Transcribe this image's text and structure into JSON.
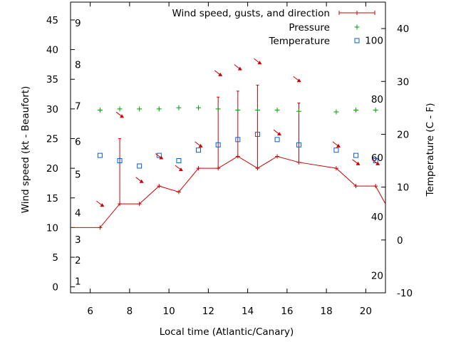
{
  "chart_data": {
    "type": "line",
    "xlabel": "Local time (Atlantic/Canary)",
    "ylabel_left": "Wind speed (kt - Beaufort)",
    "ylabel_right": "Temperature (C - F)",
    "xlim": [
      5,
      21
    ],
    "ylim_left": [
      -1,
      48
    ],
    "ylim_right": [
      -10,
      45
    ],
    "x_ticks": [
      6,
      8,
      10,
      12,
      14,
      16,
      18,
      20
    ],
    "y_left_ticks": [
      0,
      5,
      10,
      15,
      20,
      25,
      30,
      35,
      40,
      45
    ],
    "y_right_ticks": [
      -10,
      0,
      10,
      20,
      30,
      40
    ],
    "beaufort_labels": [
      {
        "label": "1",
        "kt": 1
      },
      {
        "label": "2",
        "kt": 4.5
      },
      {
        "label": "3",
        "kt": 8
      },
      {
        "label": "4",
        "kt": 12.5
      },
      {
        "label": "5",
        "kt": 19
      },
      {
        "label": "6",
        "kt": 24.5
      },
      {
        "label": "7",
        "kt": 30.5
      },
      {
        "label": "8",
        "kt": 37.5
      },
      {
        "label": "9",
        "kt": 44.5
      }
    ],
    "fahrenheit_labels": [
      {
        "label": "20",
        "c": -6.7
      },
      {
        "label": "40",
        "c": 4.4
      },
      {
        "label": "60",
        "c": 15.6
      },
      {
        "label": "80",
        "c": 26.7
      },
      {
        "label": "100",
        "c": 37.8
      }
    ],
    "legend": [
      {
        "label": "Wind speed, gusts, and direction",
        "marker": "line-plus"
      },
      {
        "label": "Pressure",
        "marker": "plus"
      },
      {
        "label": "Temperature",
        "marker": "square"
      }
    ],
    "colors": {
      "wind": "#d00000",
      "pressure": "#00a000",
      "temperature": "#0060d0"
    },
    "wind": {
      "x": [
        5.0,
        6.5,
        7.5,
        8.5,
        9.5,
        10.5,
        11.5,
        12.5,
        13.5,
        14.5,
        15.5,
        16.6,
        18.5,
        19.5,
        20.5,
        21.0
      ],
      "speed": [
        10,
        10,
        14,
        14,
        17,
        16,
        20,
        20,
        22,
        20,
        22,
        21,
        20,
        17,
        17,
        14
      ],
      "gust": [
        null,
        null,
        25,
        null,
        null,
        null,
        null,
        32,
        33,
        34,
        null,
        31,
        null,
        null,
        null,
        null
      ],
      "arrows": [
        {
          "x": 6.5,
          "kt": 14
        },
        {
          "x": 7.5,
          "kt": 29
        },
        {
          "x": 8.5,
          "kt": 18
        },
        {
          "x": 9.5,
          "kt": 22
        },
        {
          "x": 10.5,
          "kt": 20
        },
        {
          "x": 11.5,
          "kt": 24
        },
        {
          "x": 12.5,
          "kt": 36
        },
        {
          "x": 13.5,
          "kt": 37
        },
        {
          "x": 14.5,
          "kt": 38
        },
        {
          "x": 15.5,
          "kt": 26
        },
        {
          "x": 16.5,
          "kt": 35
        },
        {
          "x": 18.5,
          "kt": 24
        },
        {
          "x": 19.5,
          "kt": 21
        },
        {
          "x": 20.5,
          "kt": 21
        }
      ]
    },
    "pressure": {
      "x": [
        6.5,
        7.5,
        8.5,
        9.5,
        10.5,
        11.5,
        12.5,
        13.5,
        14.5,
        15.5,
        16.6,
        18.5,
        19.5,
        20.5
      ],
      "kt": [
        29.8,
        30.0,
        30.0,
        30.0,
        30.2,
        30.2,
        30.0,
        29.8,
        29.8,
        29.8,
        29.6,
        29.5,
        29.8,
        29.8
      ]
    },
    "temperature": {
      "x": [
        6.5,
        7.5,
        8.5,
        9.5,
        10.5,
        11.5,
        12.5,
        13.5,
        14.5,
        15.5,
        16.6,
        18.5,
        19.5,
        20.5
      ],
      "c": [
        16,
        15,
        14,
        16,
        15,
        17,
        18,
        19,
        20,
        19,
        18,
        17,
        16,
        15
      ]
    }
  }
}
